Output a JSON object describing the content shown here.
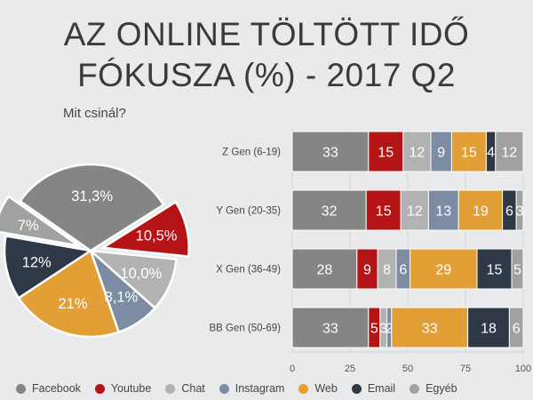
{
  "title_line1": "AZ ONLINE TÖLTÖTT IDŐ",
  "title_line2": "FÓKUSZA (%) - 2017 Q2",
  "subtitle": "Mit csinál?",
  "colors": {
    "Facebook": "#838685",
    "Youtube": "#b51416",
    "Chat": "#b1b3b2",
    "Instagram": "#7b8ca3",
    "Web": "#e29f35",
    "Email": "#2e3847",
    "Egyéb": "#9fa2a1"
  },
  "chart_data": [
    {
      "type": "pie",
      "slices": [
        {
          "name": "Facebook",
          "value": 31.3,
          "label": "31,3%",
          "exploded": false
        },
        {
          "name": "Youtube",
          "value": 10.5,
          "label": "10,5%",
          "exploded": true
        },
        {
          "name": "Chat",
          "value": 10.0,
          "label": "10,0%",
          "exploded": false
        },
        {
          "name": "Instagram",
          "value": 8.1,
          "label": "8,1%",
          "exploded": false
        },
        {
          "name": "Web",
          "value": 21,
          "label": "21%",
          "exploded": false
        },
        {
          "name": "Email",
          "value": 12,
          "label": "12%",
          "exploded": false
        },
        {
          "name": "Egyéb",
          "value": 7,
          "label": "7%",
          "exploded": true
        }
      ]
    },
    {
      "type": "bar",
      "orientation": "horizontal",
      "stacked": true,
      "categories": [
        "Z Gen (6-19)",
        "Y Gen (20-35)",
        "X Gen (36-49)",
        "BB Gen (50-69)"
      ],
      "series": [
        {
          "name": "Facebook",
          "values": [
            33,
            32,
            28,
            33
          ]
        },
        {
          "name": "Youtube",
          "values": [
            15,
            15,
            9,
            5
          ]
        },
        {
          "name": "Chat",
          "values": [
            12,
            12,
            8,
            3
          ]
        },
        {
          "name": "Instagram",
          "values": [
            9,
            13,
            6,
            2
          ]
        },
        {
          "name": "Web",
          "values": [
            15,
            19,
            29,
            33
          ]
        },
        {
          "name": "Email",
          "values": [
            4,
            6,
            15,
            18
          ]
        },
        {
          "name": "Egyéb",
          "values": [
            12,
            3,
            5,
            6
          ]
        }
      ],
      "xlim": [
        0,
        100
      ],
      "xticks": [
        0,
        25,
        50,
        75,
        100
      ]
    }
  ],
  "legend": [
    "Facebook",
    "Youtube",
    "Chat",
    "Instagram",
    "Web",
    "Email",
    "Egyéb"
  ]
}
